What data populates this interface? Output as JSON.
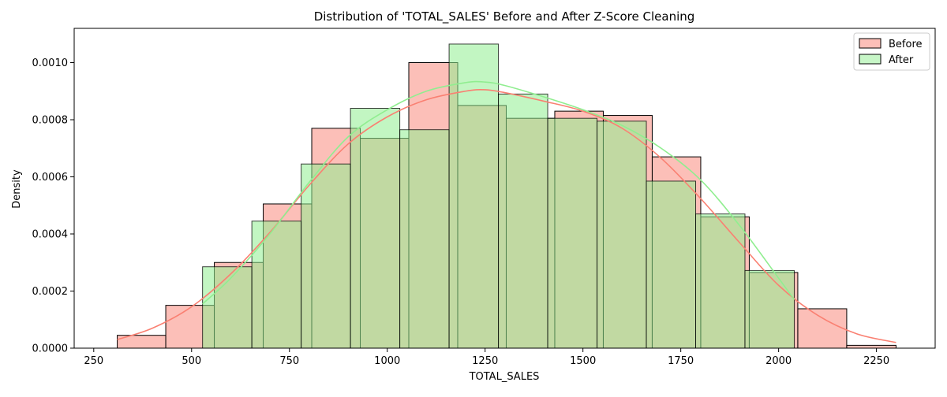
{
  "chart_data": {
    "type": "bar",
    "title": "Distribution of 'TOTAL_SALES' Before and After Z-Score Cleaning",
    "xlabel": "TOTAL_SALES",
    "ylabel": "Density",
    "xlim": [
      200,
      2400
    ],
    "ylim": [
      0,
      0.00112
    ],
    "xticks": [
      250,
      500,
      750,
      1000,
      1250,
      1500,
      1750,
      2000,
      2250
    ],
    "yticks": [
      0,
      0.0002,
      0.0004,
      0.0006,
      0.0008,
      0.001
    ],
    "ytick_labels": [
      "0.0000",
      "0.0002",
      "0.0004",
      "0.0006",
      "0.0008",
      "0.0010"
    ],
    "grid": false,
    "legend_position": "top-right",
    "series": [
      {
        "name": "Before",
        "color": "#fa8072",
        "bins": [
          {
            "x0": 310,
            "x1": 434,
            "value": 4.5e-05
          },
          {
            "x0": 434,
            "x1": 558,
            "value": 0.00015
          },
          {
            "x0": 558,
            "x1": 683,
            "value": 0.0003
          },
          {
            "x0": 683,
            "x1": 807,
            "value": 0.000505
          },
          {
            "x0": 807,
            "x1": 931,
            "value": 0.00077
          },
          {
            "x0": 931,
            "x1": 1055,
            "value": 0.000735
          },
          {
            "x0": 1055,
            "x1": 1180,
            "value": 0.001
          },
          {
            "x0": 1180,
            "x1": 1304,
            "value": 0.00085
          },
          {
            "x0": 1304,
            "x1": 1428,
            "value": 0.000805
          },
          {
            "x0": 1428,
            "x1": 1552,
            "value": 0.00083
          },
          {
            "x0": 1552,
            "x1": 1677,
            "value": 0.000815
          },
          {
            "x0": 1677,
            "x1": 1801,
            "value": 0.00067
          },
          {
            "x0": 1801,
            "x1": 1925,
            "value": 0.00046
          },
          {
            "x0": 1925,
            "x1": 2049,
            "value": 0.000265
          },
          {
            "x0": 2049,
            "x1": 2174,
            "value": 0.000138
          },
          {
            "x0": 2174,
            "x1": 2300,
            "value": 1e-05
          }
        ],
        "kde": [
          [
            310,
            3e-05
          ],
          [
            400,
            7e-05
          ],
          [
            500,
            0.000145
          ],
          [
            600,
            0.00026
          ],
          [
            700,
            0.000405
          ],
          [
            800,
            0.00057
          ],
          [
            900,
            0.000715
          ],
          [
            1000,
            0.00081
          ],
          [
            1100,
            0.00087
          ],
          [
            1200,
            0.0009
          ],
          [
            1250,
            0.000905
          ],
          [
            1300,
            0.000895
          ],
          [
            1400,
            0.000865
          ],
          [
            1500,
            0.00083
          ],
          [
            1600,
            0.00077
          ],
          [
            1700,
            0.000665
          ],
          [
            1800,
            0.000525
          ],
          [
            1900,
            0.00037
          ],
          [
            2000,
            0.00022
          ],
          [
            2100,
            0.000115
          ],
          [
            2200,
            5e-05
          ],
          [
            2300,
            2e-05
          ]
        ]
      },
      {
        "name": "After",
        "color": "#90ee90",
        "bins": [
          {
            "x0": 528,
            "x1": 654,
            "value": 0.000285
          },
          {
            "x0": 654,
            "x1": 780,
            "value": 0.000445
          },
          {
            "x0": 780,
            "x1": 906,
            "value": 0.000645
          },
          {
            "x0": 906,
            "x1": 1032,
            "value": 0.00084
          },
          {
            "x0": 1032,
            "x1": 1158,
            "value": 0.000765
          },
          {
            "x0": 1158,
            "x1": 1284,
            "value": 0.001065
          },
          {
            "x0": 1284,
            "x1": 1410,
            "value": 0.00089
          },
          {
            "x0": 1410,
            "x1": 1536,
            "value": 0.000805
          },
          {
            "x0": 1536,
            "x1": 1662,
            "value": 0.000795
          },
          {
            "x0": 1662,
            "x1": 1788,
            "value": 0.000585
          },
          {
            "x0": 1788,
            "x1": 1914,
            "value": 0.00047
          },
          {
            "x0": 1914,
            "x1": 2040,
            "value": 0.000272
          }
        ],
        "kde": [
          [
            528,
            0.000155
          ],
          [
            600,
            0.000245
          ],
          [
            700,
            0.0004
          ],
          [
            800,
            0.00058
          ],
          [
            900,
            0.00074
          ],
          [
            1000,
            0.000835
          ],
          [
            1100,
            0.0009
          ],
          [
            1200,
            0.00093
          ],
          [
            1250,
            0.000932
          ],
          [
            1300,
            0.00092
          ],
          [
            1400,
            0.00088
          ],
          [
            1500,
            0.000835
          ],
          [
            1600,
            0.00078
          ],
          [
            1700,
            0.0007
          ],
          [
            1800,
            0.00059
          ],
          [
            1900,
            0.00043
          ],
          [
            2000,
            0.000245
          ],
          [
            2040,
            0.00017
          ]
        ]
      }
    ]
  }
}
